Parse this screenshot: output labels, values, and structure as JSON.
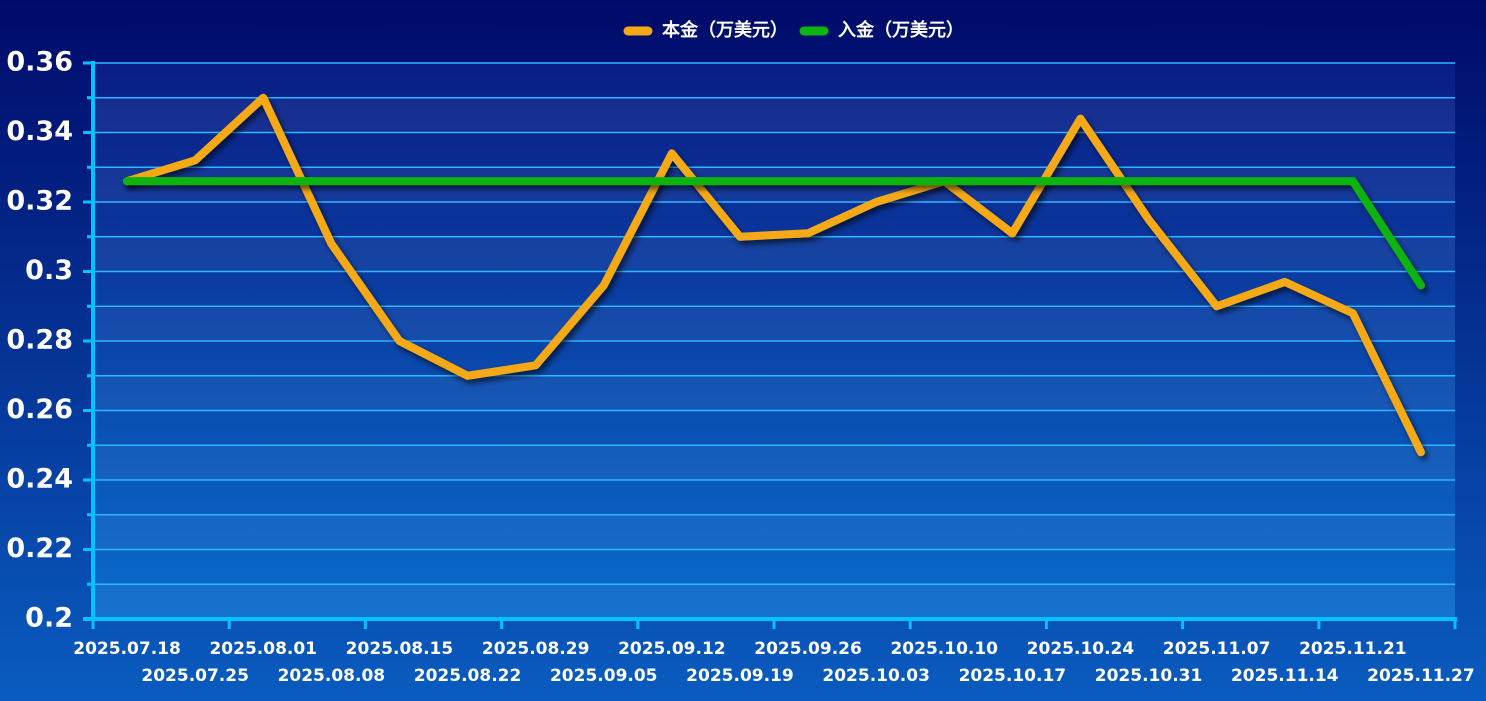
{
  "chart_data": {
    "type": "line",
    "categories": [
      "2025.07.18",
      "2025.07.25",
      "2025.08.01",
      "2025.08.08",
      "2025.08.15",
      "2025.08.22",
      "2025.08.29",
      "2025.09.05",
      "2025.09.12",
      "2025.09.19",
      "2025.09.26",
      "2025.10.03",
      "2025.10.10",
      "2025.10.17",
      "2025.10.24",
      "2025.10.31",
      "2025.11.07",
      "2025.11.14",
      "2025.11.21",
      "2025.11.27"
    ],
    "series": [
      {
        "name": "本金（万美元）",
        "color": "#f5a916",
        "values": [
          0.326,
          0.332,
          0.35,
          0.308,
          0.28,
          0.27,
          0.273,
          0.296,
          0.334,
          0.31,
          0.311,
          0.32,
          0.326,
          0.311,
          0.344,
          0.315,
          0.29,
          0.297,
          0.288,
          0.248
        ]
      },
      {
        "name": "入金（万美元）",
        "color": "#0fb40f",
        "values": [
          0.326,
          0.326,
          0.326,
          0.326,
          0.326,
          0.326,
          0.326,
          0.326,
          0.326,
          0.326,
          0.326,
          0.326,
          0.326,
          0.326,
          0.326,
          0.326,
          0.326,
          0.326,
          0.326,
          0.296
        ]
      }
    ],
    "ylim": [
      0.2,
      0.36
    ],
    "yticks": [
      0.2,
      0.22,
      0.24,
      0.26,
      0.28,
      0.3,
      0.32,
      0.34,
      0.36
    ],
    "minor_yticks": [
      0.21,
      0.23,
      0.25,
      0.27,
      0.29,
      0.31,
      0.33,
      0.35
    ],
    "grid": true,
    "legend": "top"
  }
}
